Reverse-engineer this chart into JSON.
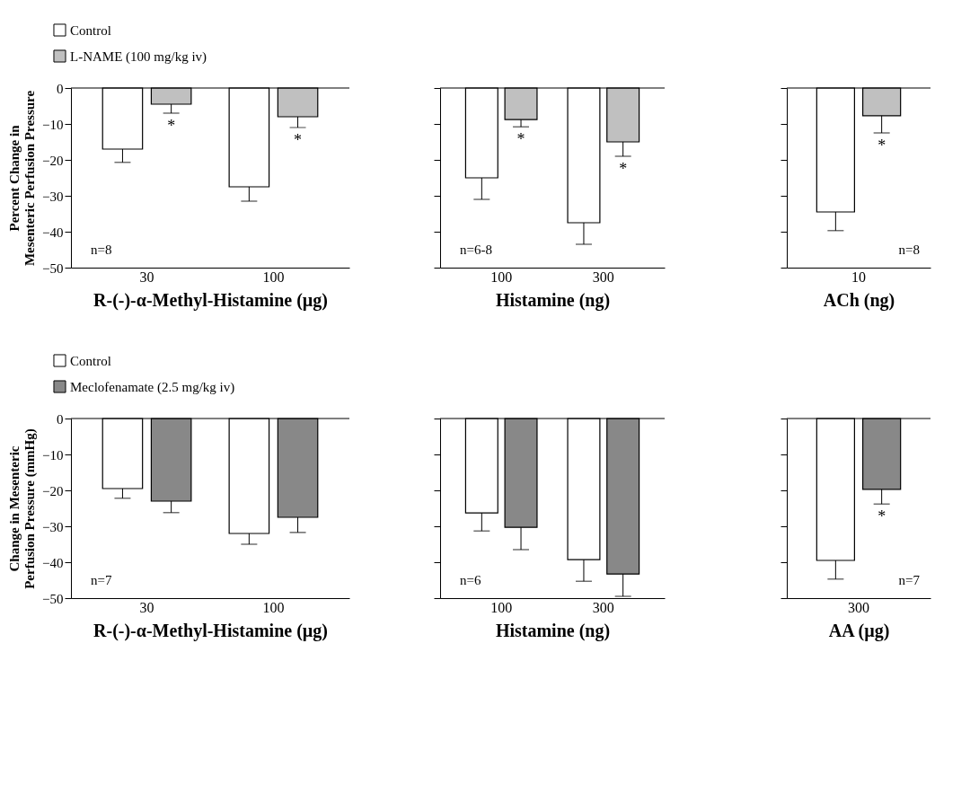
{
  "chart_data": [
    {
      "type": "bar",
      "categories": [
        "30",
        "100"
      ],
      "xlabel": "R-(-)-α-Methyl-Histamine (µg)",
      "ylabel": "Percent Change in Mesenteric Perfusion Pressure",
      "ylim": [
        -50,
        0
      ],
      "yticks": [
        0,
        -10,
        -20,
        -30,
        -40,
        -50
      ],
      "legend": "top left",
      "ref_lines": [
        {
          "axis": "y",
          "value": 0
        }
      ],
      "series": [
        {
          "name": "Control",
          "color": "#ffffff",
          "values": [
            -17,
            -27.5
          ],
          "errors": [
            [
              -20.7,
              -17
            ],
            [
              -31.5,
              -27.5
            ]
          ]
        },
        {
          "name": "L-NAME (100 mg/kg iv)",
          "color": "#c0c0c0",
          "values": [
            -4.5,
            -8
          ],
          "errors": [
            [
              -7,
              -4.5
            ],
            [
              -11,
              -8
            ]
          ]
        }
      ],
      "annotations": [
        "*",
        "*",
        "n=8"
      ]
    },
    {
      "type": "bar",
      "categories": [
        "100",
        "300"
      ],
      "xlabel": "Histamine (ng)",
      "ylim": [
        -50,
        0
      ],
      "yticks": [
        0,
        -10,
        -20,
        -30,
        -40,
        -50
      ],
      "tick_labels": "x",
      "ref_lines": [
        {
          "axis": "y",
          "value": 0
        }
      ],
      "series": [
        {
          "color": "#ffffff",
          "values": [
            -25,
            -37.5
          ],
          "errors": [
            [
              -31,
              -25
            ],
            [
              -43.5,
              -37.5
            ]
          ]
        },
        {
          "color": "#c0c0c0",
          "values": [
            -8.8,
            -15
          ],
          "errors": [
            [
              -10.8,
              -8.8
            ],
            [
              -19,
              -15
            ]
          ]
        }
      ],
      "annotations": [
        "*",
        "*",
        "n=6-8"
      ]
    },
    {
      "type": "bar",
      "categories": [
        "10"
      ],
      "xlabel": "ACh (ng)",
      "ylim": [
        -50,
        0
      ],
      "yticks": [
        0,
        -10,
        -20,
        -30,
        -40,
        -50
      ],
      "tick_labels": "x",
      "ref_lines": [
        {
          "axis": "y",
          "value": 0
        }
      ],
      "series": [
        {
          "color": "#ffffff",
          "values": [
            -34.5
          ],
          "errors": [
            [
              -39.7,
              -34.5
            ]
          ]
        },
        {
          "color": "#c0c0c0",
          "values": [
            -7.7
          ],
          "errors": [
            [
              -12.5,
              -7.7
            ]
          ]
        }
      ],
      "annotations": [
        "*",
        "n=8"
      ]
    },
    {
      "type": "bar",
      "categories": [
        "30",
        "100"
      ],
      "xlabel": "R-(-)-α-Methyl-Histamine (µg)",
      "ylabel": "Change in Mesenteric Perfusion Pressure (mmHg)",
      "ylim": [
        -50,
        0
      ],
      "yticks": [
        0,
        -10,
        -20,
        -30,
        -40,
        -50
      ],
      "legend": "top left",
      "ref_lines": [
        {
          "axis": "y",
          "value": 0
        }
      ],
      "series": [
        {
          "name": "Control",
          "color": "#ffffff",
          "values": [
            -19.5,
            -32
          ],
          "errors": [
            [
              -22.2,
              -19.5
            ],
            [
              -35,
              -32
            ]
          ]
        },
        {
          "name": "Meclofenamate (2.5 mg/kg iv)",
          "color": "#888888",
          "values": [
            -23,
            -27.5
          ],
          "errors": [
            [
              -26.2,
              -23
            ],
            [
              -31.7,
              -27.5
            ]
          ]
        }
      ],
      "annotations": [
        "n=7"
      ]
    },
    {
      "type": "bar",
      "categories": [
        "100",
        "300"
      ],
      "xlabel": "Histamine (ng)",
      "ylim": [
        -50,
        0
      ],
      "yticks": [
        0,
        -10,
        -20,
        -30,
        -40,
        -50
      ],
      "tick_labels": "x",
      "ref_lines": [
        {
          "axis": "y",
          "value": 0
        }
      ],
      "series": [
        {
          "color": "#ffffff",
          "values": [
            -26.3,
            -39.3
          ],
          "errors": [
            [
              -31.3,
              -26.3
            ],
            [
              -45.3,
              -39.3
            ]
          ]
        },
        {
          "color": "#888888",
          "values": [
            -30.3,
            -43.3
          ],
          "errors": [
            [
              -36.5,
              -30.3
            ],
            [
              -49.5,
              -43.3
            ]
          ]
        }
      ],
      "annotations": [
        "n=6"
      ]
    },
    {
      "type": "bar",
      "categories": [
        "300"
      ],
      "xlabel": "AA (µg)",
      "ylim": [
        -50,
        0
      ],
      "yticks": [
        0,
        -10,
        -20,
        -30,
        -40,
        -50
      ],
      "tick_labels": "x",
      "ref_lines": [
        {
          "axis": "y",
          "value": 0
        }
      ],
      "series": [
        {
          "color": "#ffffff",
          "values": [
            -39.5
          ],
          "errors": [
            [
              -44.7,
              -39.5
            ]
          ]
        },
        {
          "color": "#888888",
          "values": [
            -19.7
          ],
          "errors": [
            [
              -23.8,
              -19.7
            ]
          ]
        }
      ],
      "annotations": [
        "*",
        "n=7"
      ]
    }
  ]
}
